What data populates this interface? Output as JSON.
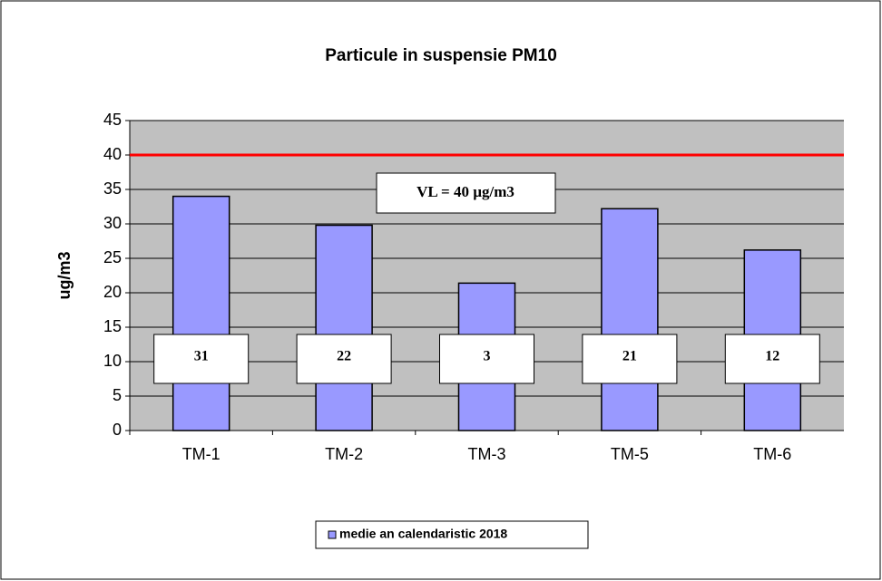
{
  "chart_data": {
    "type": "bar",
    "title": "Particule in suspensie PM10",
    "y_label": "ug/m3",
    "categories": [
      "TM-1",
      "TM-2",
      "TM-3",
      "TM-5",
      "TM-6"
    ],
    "series": [
      {
        "name": "medie an calendaristic 2018",
        "color": "#9999ff",
        "values": [
          34,
          29.8,
          21.4,
          32.2,
          26.2
        ]
      }
    ],
    "annotations": [
      "31",
      "22",
      "3",
      "21",
      "12"
    ],
    "reference_line": {
      "value": 40,
      "color": "#ff0000",
      "label": "VL = 40 µg/m3"
    },
    "ylim": [
      0,
      45
    ],
    "yticks": [
      0,
      5,
      10,
      15,
      20,
      25,
      30,
      35,
      40,
      45
    ],
    "grid": true,
    "legend": "bottom"
  }
}
